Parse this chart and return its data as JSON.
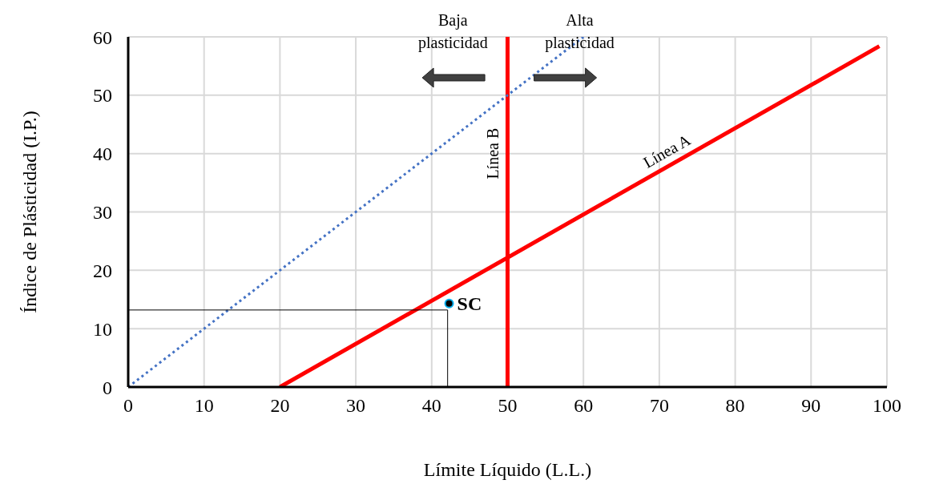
{
  "chart_data": {
    "type": "line",
    "xlabel": "Límite Líquido (L.L.)",
    "ylabel": "Índice de Plásticidad (I.P.)",
    "xlim": [
      0,
      100
    ],
    "xticks": [
      0,
      10,
      20,
      30,
      40,
      50,
      60,
      70,
      80,
      90,
      100
    ],
    "ylim": [
      0,
      60
    ],
    "yticks": [
      0,
      10,
      20,
      30,
      40,
      50,
      60
    ],
    "grid": true,
    "legend": false,
    "series": [
      {
        "name": "Línea A",
        "color": "#ff0000",
        "line_style": "solid",
        "x": [
          20,
          99
        ],
        "values": [
          0,
          58.4
        ]
      },
      {
        "color": "#4472c4",
        "line_style": "dotted",
        "x": [
          0,
          60
        ],
        "values": [
          0,
          60
        ]
      },
      {
        "color": "#000000",
        "line_style": "solid",
        "x": [
          0,
          42.1,
          42.1
        ],
        "values": [
          13.2,
          13.2,
          0
        ]
      },
      {
        "type": "scatter",
        "name": "SC",
        "color": "#000000",
        "marker": "circle",
        "x": [
          42.3
        ],
        "values": [
          14.3
        ]
      }
    ],
    "ref_lines": [
      {
        "axis": "x",
        "value": 50,
        "label": "Línea B",
        "color": "#ff0000"
      }
    ],
    "annotations": [
      "Baja plasticidad",
      "Alta plasticidad"
    ]
  }
}
